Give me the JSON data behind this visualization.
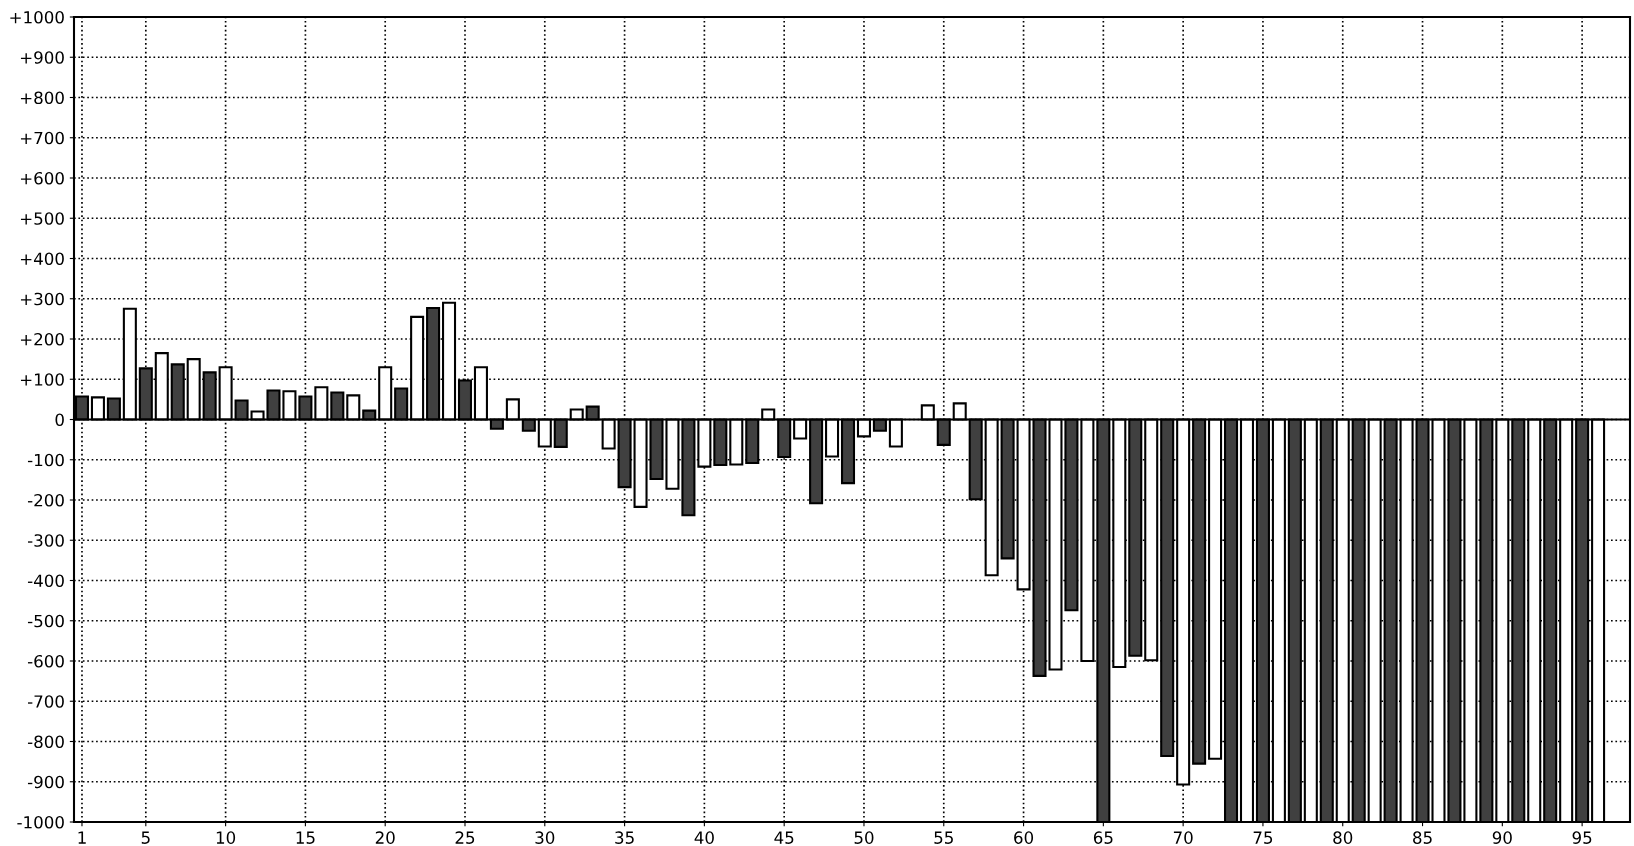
{
  "chart_data": {
    "type": "bar",
    "x": [
      1,
      2,
      3,
      4,
      5,
      6,
      7,
      8,
      9,
      10,
      11,
      12,
      13,
      14,
      15,
      16,
      17,
      18,
      19,
      20,
      21,
      22,
      23,
      24,
      25,
      26,
      27,
      28,
      29,
      30,
      31,
      32,
      33,
      34,
      35,
      36,
      37,
      38,
      39,
      40,
      41,
      42,
      43,
      44,
      45,
      46,
      47,
      48,
      49,
      50,
      51,
      52,
      53,
      54,
      55,
      56,
      57,
      58,
      59,
      60,
      61,
      62,
      63,
      64,
      65,
      66,
      67,
      68,
      69,
      70,
      71,
      72,
      73,
      74,
      75,
      76,
      77,
      78,
      79,
      80,
      81,
      82,
      83,
      84,
      85,
      86,
      87,
      88,
      89,
      90,
      91,
      92,
      93,
      94,
      95,
      96
    ],
    "series": [
      {
        "color": "#404040",
        "values": [
          57,
          null,
          52,
          null,
          127,
          null,
          137,
          null,
          117,
          null,
          47,
          null,
          72,
          null,
          57,
          null,
          67,
          null,
          22,
          null,
          77,
          null,
          277,
          null,
          97,
          null,
          -23,
          null,
          -28,
          null,
          -68,
          null,
          32,
          null,
          -168,
          null,
          -148,
          null,
          -238,
          null,
          -113,
          null,
          -108,
          null,
          -93,
          null,
          -208,
          null,
          -158,
          null,
          -28,
          null,
          null,
          null,
          -63,
          null,
          -198,
          null,
          -345,
          null,
          -637,
          null,
          -474,
          null,
          -1000,
          null,
          -587,
          null,
          -836,
          null,
          -855,
          null,
          -1000,
          null,
          -1000,
          null,
          -1000,
          null,
          -1000,
          null,
          -1000,
          null,
          -1000,
          null,
          -1000,
          null,
          -1000,
          null,
          -1000,
          null,
          -1000,
          null,
          -1000,
          null,
          -1000,
          null
        ]
      },
      {
        "color": "#ffffff",
        "values": [
          null,
          55,
          null,
          275,
          null,
          165,
          null,
          150,
          null,
          130,
          null,
          20,
          null,
          70,
          null,
          80,
          null,
          60,
          null,
          130,
          null,
          255,
          null,
          290,
          null,
          130,
          null,
          50,
          null,
          -67,
          null,
          25,
          null,
          -72,
          null,
          -217,
          null,
          -172,
          null,
          -117,
          null,
          -112,
          null,
          25,
          null,
          -47,
          null,
          -92,
          null,
          -42,
          null,
          -67,
          null,
          35,
          null,
          40,
          null,
          -387,
          null,
          -422,
          null,
          -621,
          null,
          -600,
          null,
          -615,
          null,
          -598,
          null,
          -907,
          null,
          -843,
          null,
          -1000,
          null,
          -1000,
          null,
          -1000,
          null,
          -1000,
          null,
          -1000,
          null,
          -1000,
          null,
          -1000,
          null,
          -1000,
          null,
          -1000,
          null,
          -1000,
          null,
          -1000,
          null,
          -1000
        ]
      }
    ],
    "xlim": [
      0.5,
      98
    ],
    "xticks": [
      1,
      5,
      10,
      15,
      20,
      25,
      30,
      35,
      40,
      45,
      50,
      55,
      60,
      65,
      70,
      75,
      80,
      85,
      90,
      95
    ],
    "ylim": [
      -1000,
      1000
    ],
    "yticks": [
      {
        "value": 1000,
        "label": "+1000"
      },
      {
        "value": 900,
        "label": "+900"
      },
      {
        "value": 800,
        "label": "+800"
      },
      {
        "value": 700,
        "label": "+700"
      },
      {
        "value": 600,
        "label": "+600"
      },
      {
        "value": 500,
        "label": "+500"
      },
      {
        "value": 400,
        "label": "+400"
      },
      {
        "value": 300,
        "label": "+300"
      },
      {
        "value": 200,
        "label": "+200"
      },
      {
        "value": 100,
        "label": "+100"
      },
      0,
      {
        "value": -100,
        "label": "-100"
      },
      {
        "value": -200,
        "label": "-200"
      },
      {
        "value": -300,
        "label": "-300"
      },
      {
        "value": -400,
        "label": "-400"
      },
      {
        "value": -500,
        "label": "-500"
      },
      {
        "value": -600,
        "label": "-600"
      },
      {
        "value": -700,
        "label": "-700"
      },
      {
        "value": -800,
        "label": "-800"
      },
      {
        "value": -900,
        "label": "-900"
      },
      {
        "value": -1000,
        "label": "-1000"
      }
    ],
    "grid": true,
    "line_style": "dotted"
  }
}
